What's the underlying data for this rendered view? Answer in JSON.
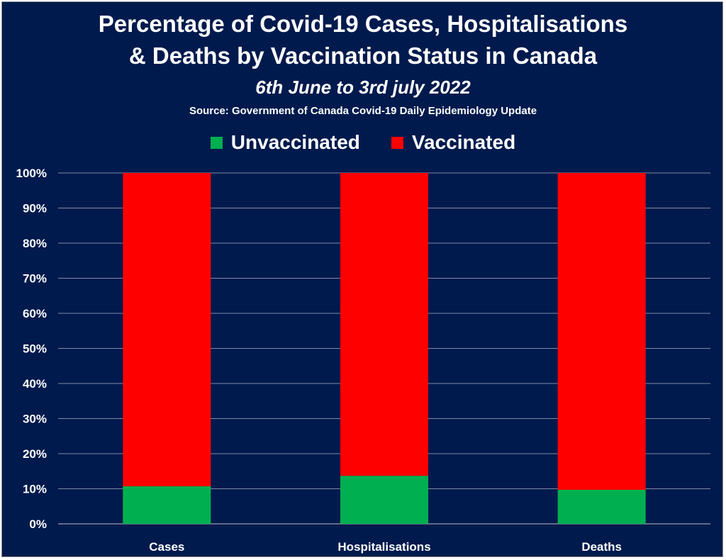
{
  "chart_data": {
    "type": "bar",
    "stacked": true,
    "title_line1": "Percentage of Covid-19 Cases, Hospitalisations",
    "title_line2": "& Deaths by Vaccination Status in Canada",
    "subtitle": "6th June to 3rd july 2022",
    "source": "Source: Government of Canada  Covid-19 Daily Epidemiology Update",
    "categories": [
      "Cases",
      "Hospitalisations",
      "Deaths"
    ],
    "series": [
      {
        "name": "Unvaccinated",
        "color": "#00b050",
        "values": [
          10.7,
          13.7,
          9.7
        ]
      },
      {
        "name": "Vaccinated",
        "color": "#ff0000",
        "values": [
          89.3,
          86.3,
          90.3
        ]
      }
    ],
    "ylim": [
      0,
      100
    ],
    "yticks": [
      "0%",
      "10%",
      "20%",
      "30%",
      "40%",
      "50%",
      "60%",
      "70%",
      "80%",
      "90%",
      "100%"
    ],
    "grid": true,
    "legend_position": "top"
  }
}
